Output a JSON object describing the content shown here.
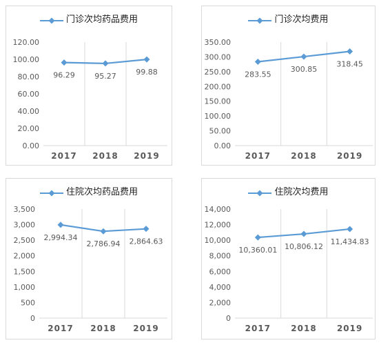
{
  "colors": {
    "series": "#5b9bd5",
    "grid": "#d9d9d9",
    "text": "#595959"
  },
  "chart_data": [
    {
      "type": "line",
      "title": "门诊次均药品费用",
      "x": [
        "2017",
        "2018",
        "2019"
      ],
      "series": [
        {
          "name": "门诊次均药品费用",
          "values": [
            96.29,
            95.27,
            99.88
          ]
        }
      ],
      "data_labels": [
        "96.29",
        "95.27",
        "99.88"
      ],
      "ylim": [
        0,
        120
      ],
      "yticks": [
        "0.00",
        "20.00",
        "40.00",
        "60.00",
        "80.00",
        "100.00",
        "120.00"
      ],
      "grid": "vertical",
      "legend": "top"
    },
    {
      "type": "line",
      "title": "门诊次均费用",
      "x": [
        "2017",
        "2018",
        "2019"
      ],
      "series": [
        {
          "name": "门诊次均费用",
          "values": [
            283.55,
            300.85,
            318.45
          ]
        }
      ],
      "data_labels": [
        "283.55",
        "300.85",
        "318.45"
      ],
      "ylim": [
        0,
        350
      ],
      "yticks": [
        "0.00",
        "50.00",
        "100.00",
        "150.00",
        "200.00",
        "250.00",
        "300.00",
        "350.00"
      ],
      "grid": "vertical",
      "legend": "top"
    },
    {
      "type": "line",
      "title": "住院次均药品费用",
      "x": [
        "2017",
        "2018",
        "2019"
      ],
      "series": [
        {
          "name": "住院次均药品费用",
          "values": [
            2994.34,
            2786.94,
            2864.63
          ]
        }
      ],
      "data_labels": [
        "2,994.34",
        "2,786.94",
        "2,864.63"
      ],
      "ylim": [
        0,
        3500
      ],
      "yticks": [
        "0",
        "500",
        "1,000",
        "1,500",
        "2,000",
        "2,500",
        "3,000",
        "3,500"
      ],
      "grid": "vertical",
      "legend": "top"
    },
    {
      "type": "line",
      "title": "住院次均费用",
      "x": [
        "2017",
        "2018",
        "2019"
      ],
      "series": [
        {
          "name": "住院次均费用",
          "values": [
            10360.01,
            10806.12,
            11434.83
          ]
        }
      ],
      "data_labels": [
        "10,360.01",
        "10,806.12",
        "11,434.83"
      ],
      "ylim": [
        0,
        14000
      ],
      "yticks": [
        "0",
        "2,000",
        "4,000",
        "6,000",
        "8,000",
        "10,000",
        "12,000",
        "14,000"
      ],
      "grid": "vertical",
      "legend": "top"
    }
  ]
}
